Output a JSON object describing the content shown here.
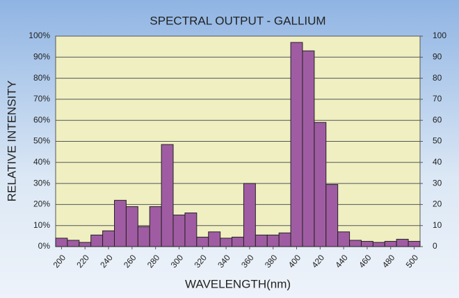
{
  "chart_data": {
    "type": "histogram",
    "title": "SPECTRAL OUTPUT - GALLIUM",
    "x_label": "WAVELENGTH(nm)",
    "y_label": "RELATIVE INTENSITY",
    "bins": [
      195,
      205,
      215,
      225,
      235,
      245,
      255,
      265,
      275,
      285,
      295,
      305,
      315,
      325,
      335,
      345,
      355,
      365,
      375,
      385,
      395,
      405,
      415,
      425,
      435,
      445,
      455,
      465,
      475,
      485,
      495,
      505
    ],
    "values": [
      4,
      3,
      2,
      5.5,
      7.5,
      22,
      19,
      9.5,
      19,
      48.5,
      15,
      16,
      4.5,
      7,
      4,
      4.5,
      30,
      5.5,
      5.5,
      6.5,
      97,
      93,
      59,
      29.5,
      7,
      3,
      2.5,
      2,
      2.5,
      3.5,
      2.5
    ],
    "color": "#a05ca2",
    "xlim": [
      195,
      505
    ],
    "xticks": [
      200,
      220,
      240,
      260,
      280,
      300,
      320,
      340,
      360,
      380,
      400,
      420,
      440,
      460,
      480,
      500
    ],
    "ylim": [
      0,
      100
    ],
    "yticks": [
      {
        "value": 0,
        "label": "0%"
      },
      {
        "value": 10,
        "label": "10%"
      },
      {
        "value": 20,
        "label": "20%"
      },
      {
        "value": 30,
        "label": "30%"
      },
      {
        "value": 40,
        "label": "40%"
      },
      {
        "value": 50,
        "label": "50%"
      },
      {
        "value": 60,
        "label": "60%"
      },
      {
        "value": 70,
        "label": "70%"
      },
      {
        "value": 80,
        "label": "80%"
      },
      {
        "value": 90,
        "label": "90%"
      },
      {
        "value": 100,
        "label": "100%"
      }
    ],
    "y2lim": [
      0,
      100
    ],
    "y2ticks": [
      0,
      10,
      20,
      30,
      40,
      50,
      60,
      70,
      80,
      90,
      100
    ],
    "grid": true
  }
}
